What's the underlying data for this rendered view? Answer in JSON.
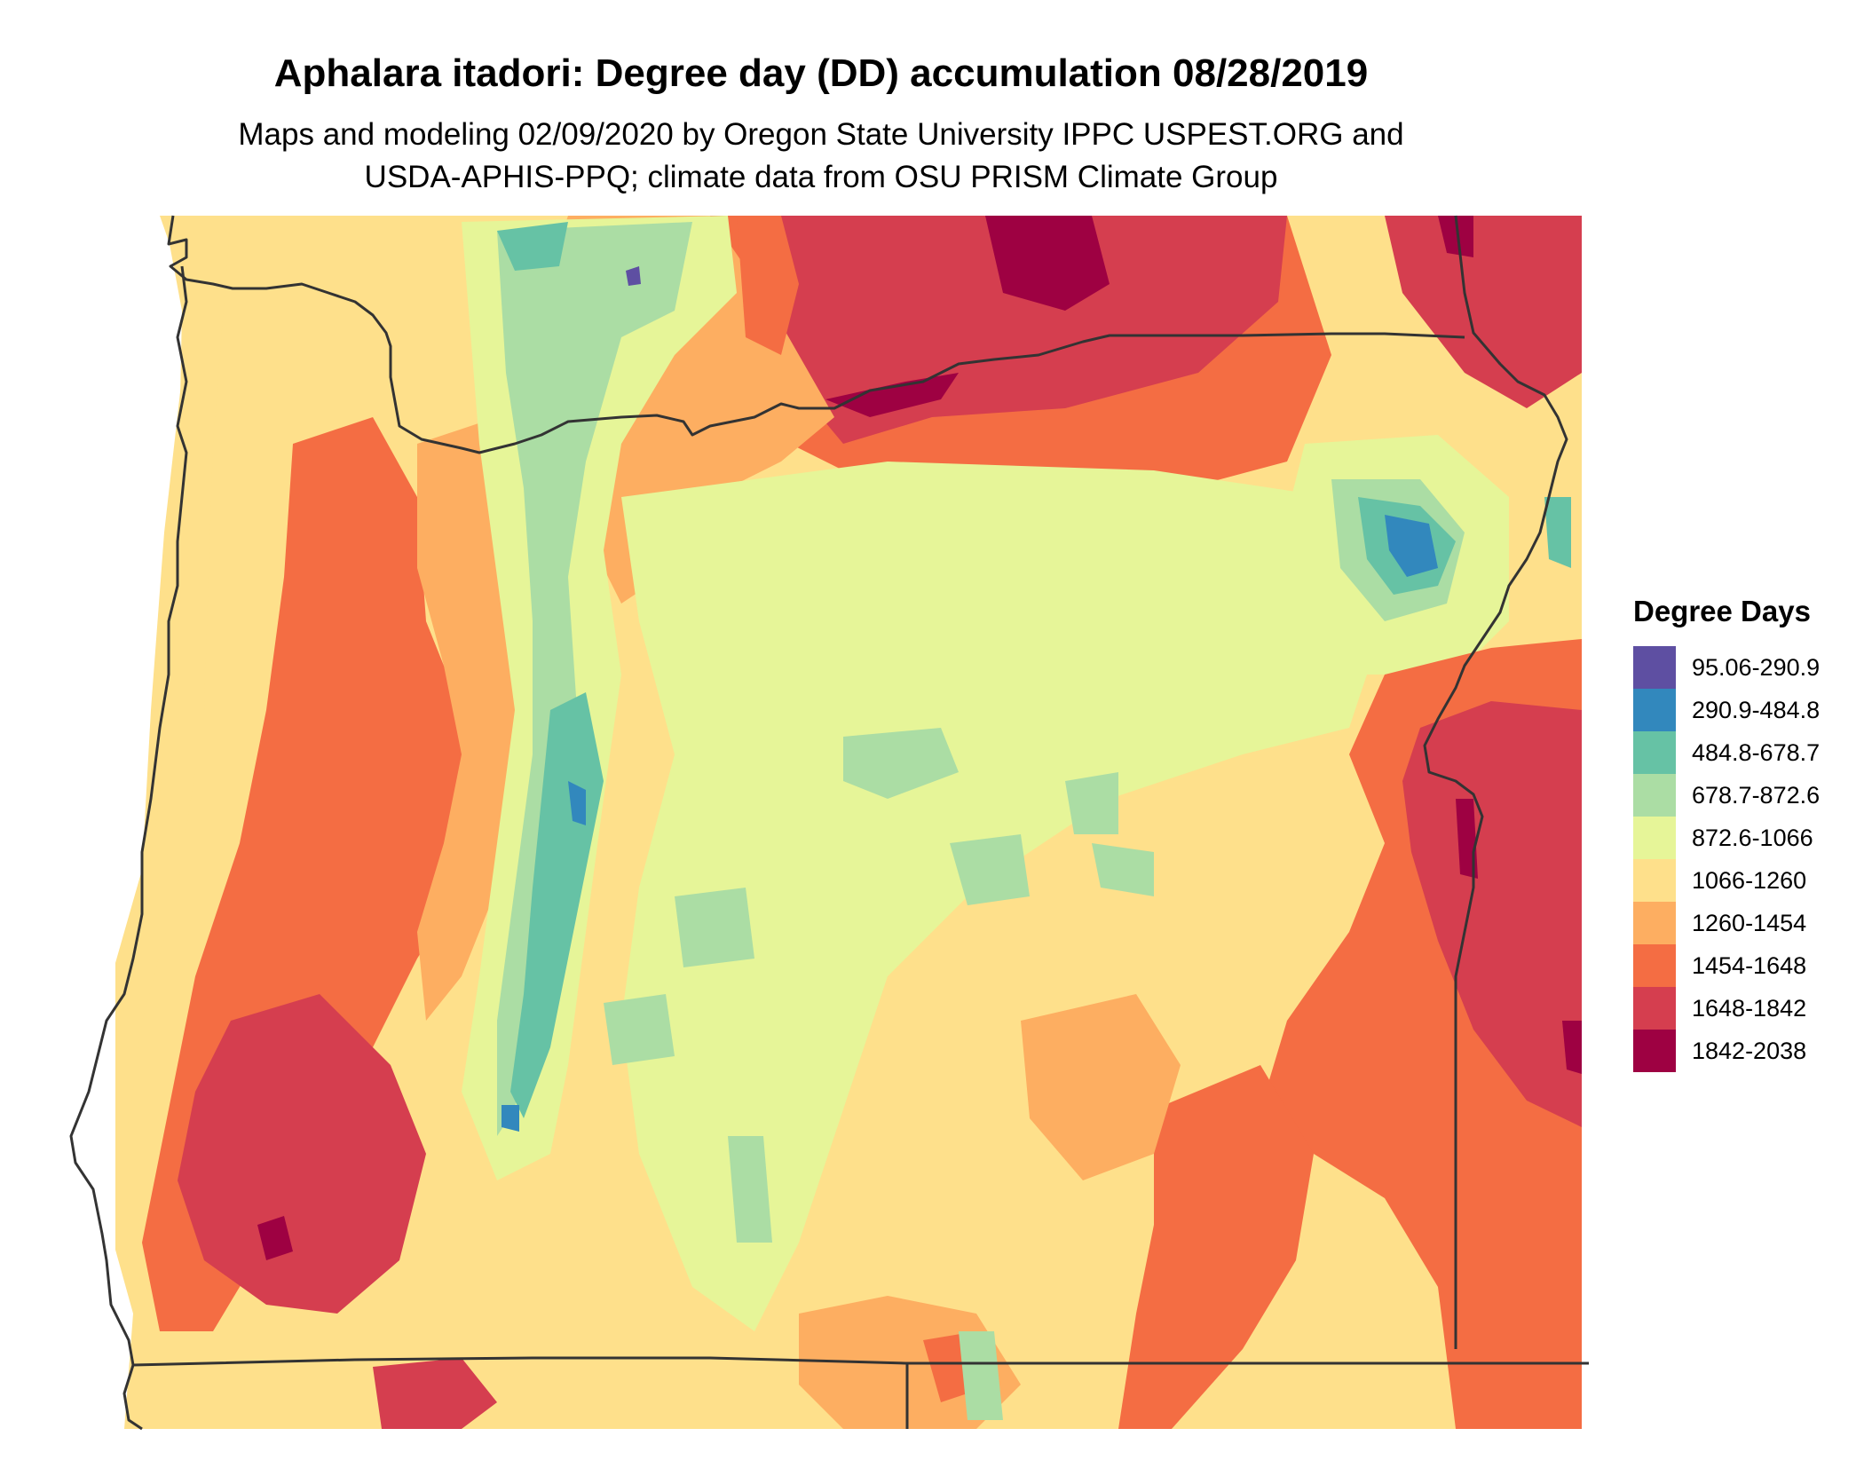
{
  "title": "Aphalara itadori: Degree day (DD) accumulation 08/28/2019",
  "subtitle_lines": [
    "Maps and modeling 02/09/2020 by Oregon State University IPPC USPEST.ORG and",
    "USDA-APHIS-PPQ; climate data from OSU PRISM Climate Group"
  ],
  "legend": {
    "title": "Degree Days",
    "items": [
      {
        "label": "95.06-290.9",
        "color": "#5e4fa2"
      },
      {
        "label": "290.9-484.8",
        "color": "#3288bd"
      },
      {
        "label": "484.8-678.7",
        "color": "#66c2a5"
      },
      {
        "label": "678.7-872.6",
        "color": "#abdda4"
      },
      {
        "label": "872.6-1066",
        "color": "#e6f598"
      },
      {
        "label": "1066-1260",
        "color": "#fee08b"
      },
      {
        "label": "1260-1454",
        "color": "#fdae61"
      },
      {
        "label": "1454-1648",
        "color": "#f46d43"
      },
      {
        "label": "1648-1842",
        "color": "#d53e4f"
      },
      {
        "label": "1842-2038",
        "color": "#9e0142"
      }
    ]
  }
}
